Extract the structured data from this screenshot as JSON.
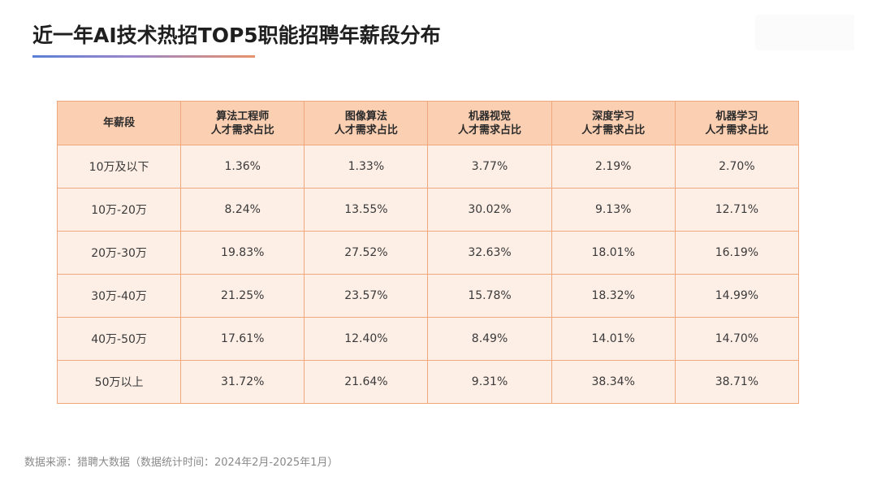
{
  "title": "近一年AI技术热招TOP5职能招聘年薪段分布",
  "table": {
    "header": {
      "col0": "年薪段",
      "col1_line1": "算法工程师",
      "col1_line2": "人才需求占比",
      "col2_line1": "图像算法",
      "col2_line2": "人才需求占比",
      "col3_line1": "机器视觉",
      "col3_line2": "人才需求占比",
      "col4_line1": "深度学习",
      "col4_line2": "人才需求占比",
      "col5_line1": "机器学习",
      "col5_line2": "人才需求占比"
    },
    "rows": [
      [
        "10万及以下",
        "1.36%",
        "1.33%",
        "3.77%",
        "2.19%",
        "2.70%"
      ],
      [
        "10万-20万",
        "8.24%",
        "13.55%",
        "30.02%",
        "9.13%",
        "12.71%"
      ],
      [
        "20万-30万",
        "19.83%",
        "27.52%",
        "32.63%",
        "18.01%",
        "16.19%"
      ],
      [
        "30万-40万",
        "21.25%",
        "23.57%",
        "15.78%",
        "18.32%",
        "14.99%"
      ],
      [
        "40万-50万",
        "17.61%",
        "12.40%",
        "8.49%",
        "14.01%",
        "14.70%"
      ],
      [
        "50万以上",
        "31.72%",
        "21.64%",
        "9.31%",
        "38.34%",
        "38.71%"
      ]
    ]
  },
  "source": "数据来源：猎聘大数据（数据统计时间：2024年2月-2025年1月）",
  "colors": {
    "header_bg": "#fbcfb2",
    "cell_bg": "#fdeee6",
    "border": "#f0a77c",
    "underline_start": "#5b7fd6",
    "underline_end": "#e8926b"
  }
}
